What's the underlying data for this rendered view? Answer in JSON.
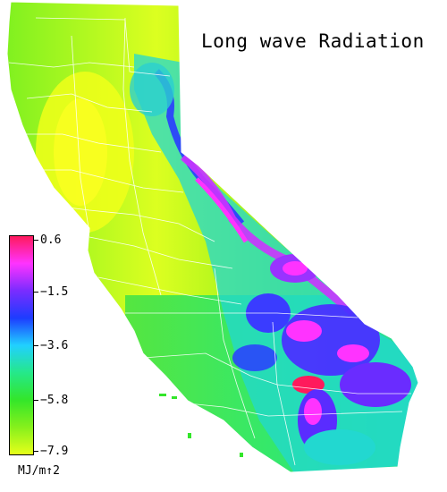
{
  "title": "Long wave Radiation",
  "legend": {
    "units": "MJ/m↑2",
    "ticks": [
      "0.6",
      "−1.5",
      "−3.6",
      "−5.8",
      "−7.9"
    ],
    "gradient_colors": [
      "#ff1a5c",
      "#ff33ff",
      "#7a2cff",
      "#1d3cff",
      "#21d0ff",
      "#25e88a",
      "#33e62a",
      "#86f01c",
      "#e6ff1a"
    ]
  },
  "map": {
    "region": "California",
    "layer": "long wave radiation",
    "boundaries": "county"
  }
}
